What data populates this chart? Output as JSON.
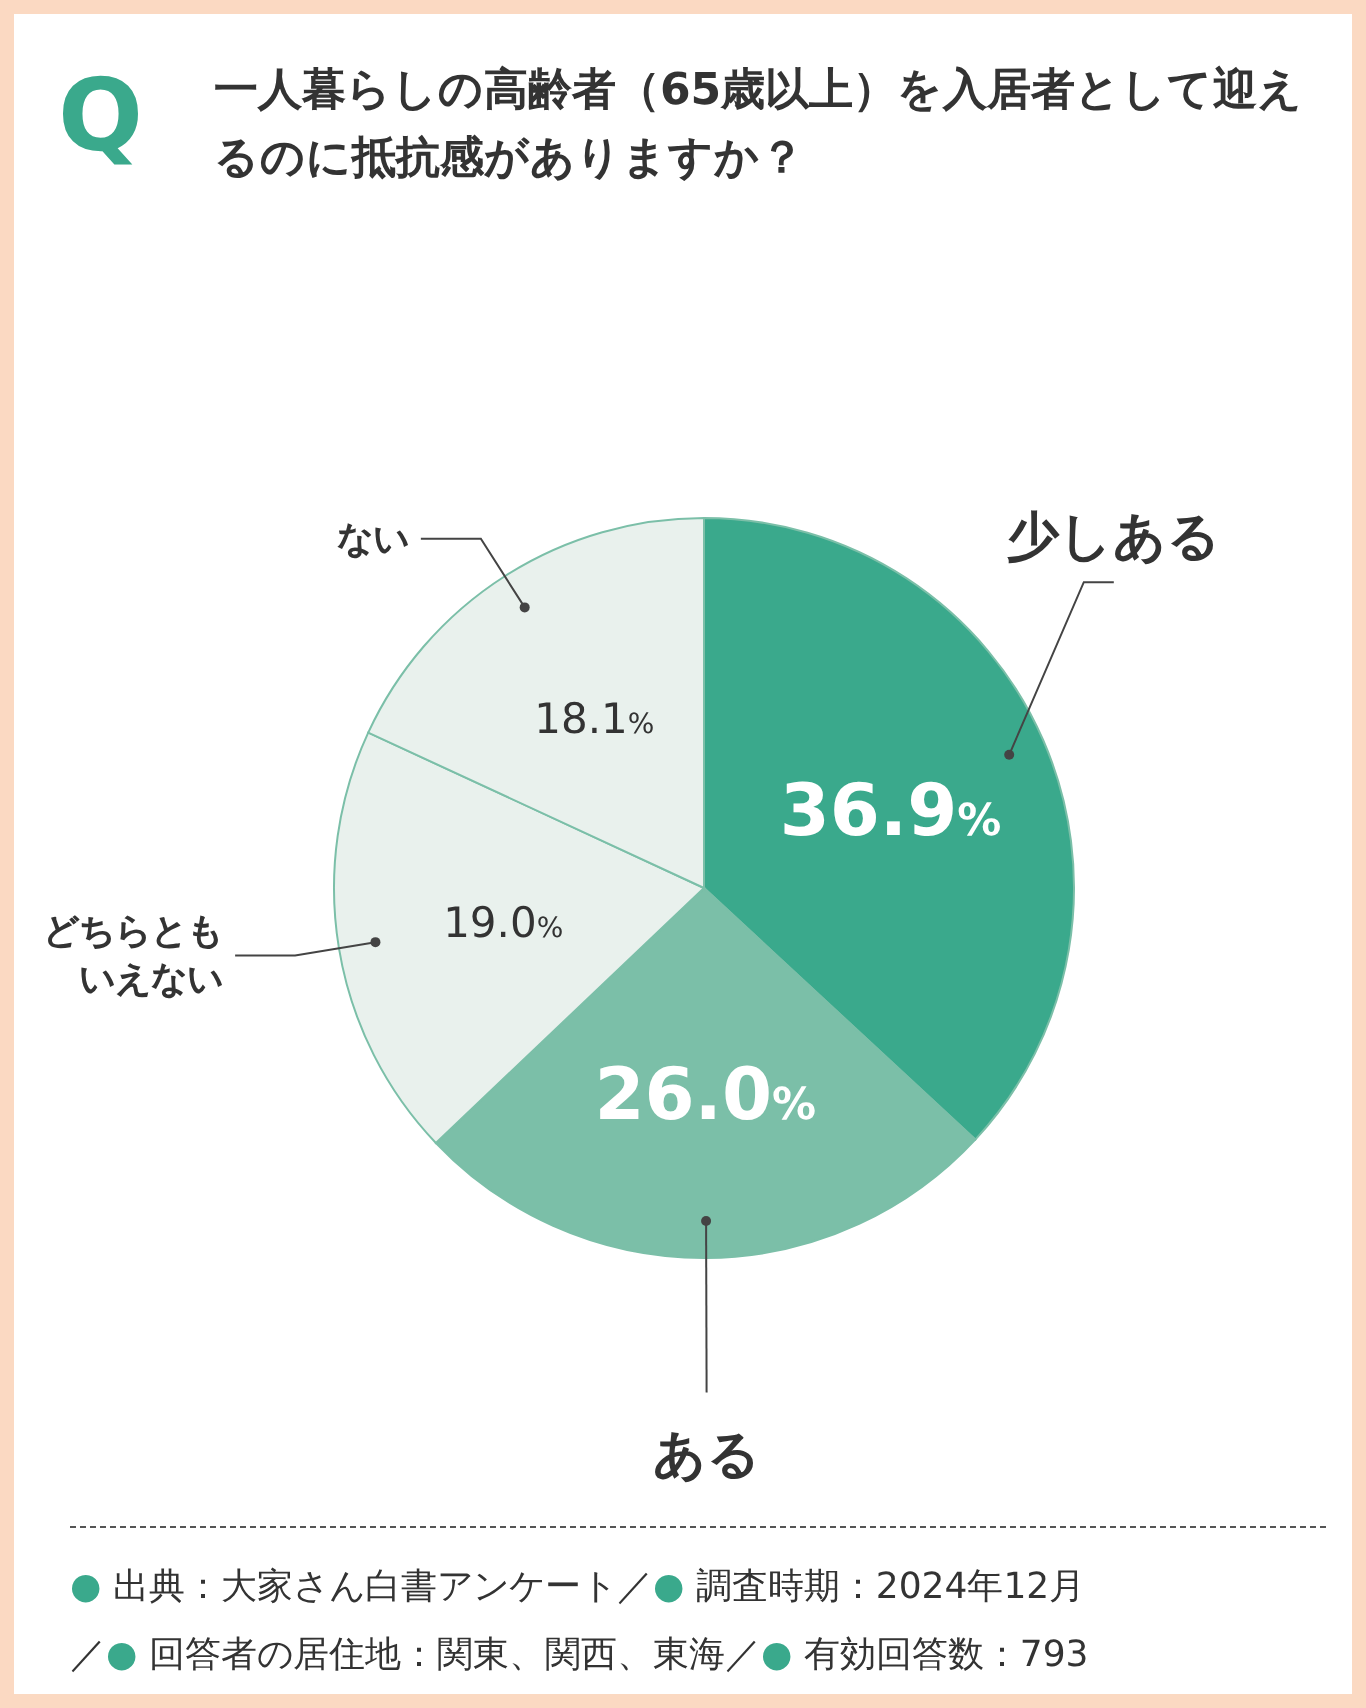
{
  "chart_data": {
    "type": "pie",
    "title": "一人暮らしの高齢者（65歳以上）を入居者として迎えるのに抵抗感がありますか？",
    "categories": [
      "少しある",
      "ある",
      "どちらともいえない",
      "ない"
    ],
    "values": [
      36.9,
      26.0,
      19.0,
      18.1
    ],
    "colors": [
      "#3aa98c",
      "#7bbfa8",
      "#e9f1ed",
      "#e9f1ed"
    ],
    "value_labels": [
      "36.9%",
      "26.0%",
      "19.0%",
      "18.1%"
    ],
    "annotations": [
      "Q",
      "● 出典：大家さん白書アンケート／● 調査時期：2024年12月",
      "／● 回答者の居住地：関東、関西、東海／● 有効回答数：793"
    ]
  }
}
